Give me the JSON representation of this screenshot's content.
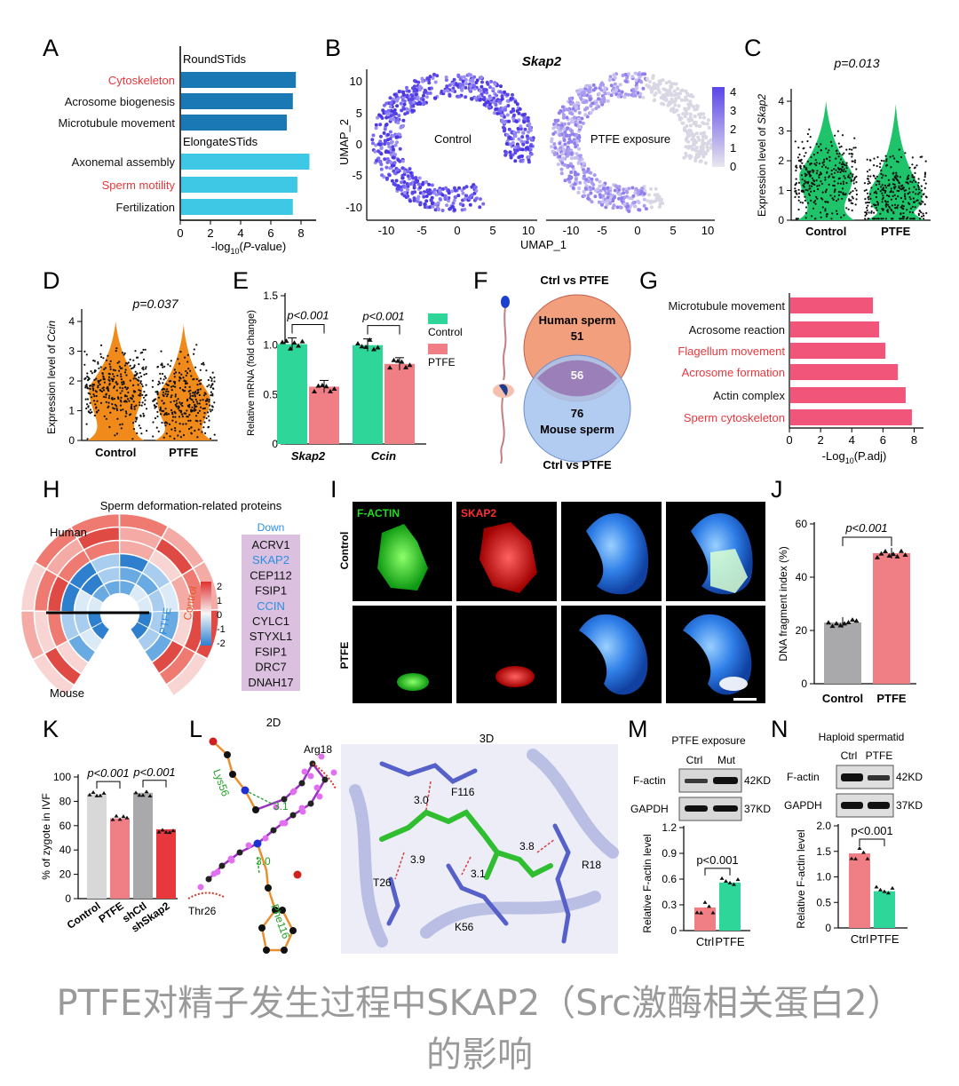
{
  "colors": {
    "red": "#e8383d",
    "darkblue": "#1a78b5",
    "cyan": "#3fc8e6",
    "green": "#2fd699",
    "pink": "#f07f85",
    "grey": "#a9a9ab",
    "purple": "#7a6cf2",
    "orange": "#f08a3a",
    "blue": "#5aa0d8",
    "label": "#1a78d8"
  },
  "panels": {
    "A": "A",
    "B": "B",
    "C": "C",
    "D": "D",
    "E": "E",
    "F": "F",
    "G": "G",
    "H": "H",
    "I": "I",
    "J": "J",
    "K": "K",
    "L": "L",
    "M": "M",
    "N": "N"
  },
  "panelA": {
    "chart_data": {
      "type": "bar",
      "groups": [
        "RoundSTids",
        "ElongateSTids"
      ],
      "categories": [
        "Cytoskeleton",
        "Acrosome biogenesis",
        "Microtubule movement",
        "Axonemal assembly",
        "Sperm motility",
        "Fertilization"
      ],
      "group_of": [
        0,
        0,
        0,
        1,
        1,
        1
      ],
      "highlight": [
        true,
        false,
        false,
        false,
        true,
        false
      ],
      "values": [
        7.6,
        7.4,
        7.0,
        8.5,
        7.7,
        7.4
      ],
      "xlim": [
        0,
        9
      ],
      "xticks": [
        0,
        2,
        4,
        6,
        8
      ],
      "xlabel_pre": "-log",
      "xlabel_sub": "10",
      "xlabel_post": "(",
      "xlabel_ital": "P",
      "xlabel_end": "-value)"
    }
  },
  "panelB": {
    "chart_data": {
      "type": "scatter",
      "title": "Skap2",
      "ylabel": "UMAP_2",
      "xlabel": "UMAP_1",
      "xticks": [
        -10,
        -5,
        0,
        5,
        10
      ],
      "yticks": [
        10,
        5,
        0,
        -5,
        -10
      ],
      "xlim": [
        -12,
        12
      ],
      "ylim": [
        -12,
        12
      ],
      "sub_labels": [
        "Control",
        "PTFE exposure"
      ],
      "legend_ticks": [
        4,
        3,
        2,
        1,
        0
      ]
    }
  },
  "panelC": {
    "chart_data": {
      "type": "violin",
      "p_label": "p=0.013",
      "ylabel_pre": "Expression level of ",
      "ylabel_gene": "Skap2",
      "categories": [
        "Control",
        "PTFE"
      ],
      "yticks": [
        0,
        1,
        2,
        3,
        4
      ],
      "ylim": [
        0,
        4.3
      ],
      "medians": [
        1.5,
        0.9
      ]
    }
  },
  "panelD": {
    "chart_data": {
      "type": "violin",
      "p_label": "p=0.037",
      "ylabel_pre": "Expression level of ",
      "ylabel_gene": "Ccin",
      "categories": [
        "Control",
        "PTFE"
      ],
      "yticks": [
        0,
        1,
        2,
        3,
        4
      ],
      "ylim": [
        0,
        4.3
      ],
      "medians": [
        1.7,
        1.4
      ]
    }
  },
  "panelE": {
    "chart_data": {
      "type": "bar",
      "ylabel": "Relative mRNA (fold change)",
      "categories": [
        "Skap2",
        "Ccin"
      ],
      "series": [
        {
          "name": "Control",
          "values": [
            1.01,
            1.0
          ]
        },
        {
          "name": "PTFE",
          "values": [
            0.58,
            0.81
          ]
        }
      ],
      "p_labels": [
        "p<0.001",
        "p<0.001"
      ],
      "yticks": [
        0,
        0.5,
        1.0,
        1.5
      ],
      "ytick_labels": [
        "0",
        "0.5",
        "1.0",
        "1.5"
      ],
      "ylim": [
        0,
        1.5
      ]
    }
  },
  "panelF": {
    "title_top": "Ctrl vs PTFE",
    "title_bottom": "Ctrl vs PTFE",
    "top_label": "Human sperm",
    "top_value": "51",
    "overlap": "56",
    "bottom_value": "76",
    "bottom_label": "Mouse sperm"
  },
  "panelG": {
    "chart_data": {
      "type": "bar",
      "categories": [
        "Microtubule movement",
        "Acrosome reaction",
        "Flagellum movement",
        "Acrosome formation",
        "Actin complex",
        "Sperm cytoskeleton"
      ],
      "highlight": [
        false,
        false,
        true,
        true,
        false,
        true
      ],
      "values": [
        5.3,
        5.7,
        6.1,
        6.9,
        7.4,
        7.8
      ],
      "xlim": [
        0,
        8.6
      ],
      "xticks": [
        0,
        2,
        4,
        6,
        8
      ],
      "xlabel_pre": "-Log",
      "xlabel_sub": "10",
      "xlabel_post": "(P.adj)"
    }
  },
  "panelH": {
    "title": "Sperm deformation-related proteins",
    "human": "Human",
    "mouse": "Mouse",
    "ptfe": "PTFE",
    "control": "Control",
    "down": "Down",
    "proteins": [
      "ACRV1",
      "SKAP2",
      "CEP112",
      "FSIP1",
      "CCIN",
      "CYLC1",
      "STYXL1",
      "FSIP1",
      "DRC7",
      "DNAH17"
    ],
    "protein_highlight": [
      false,
      true,
      false,
      false,
      true,
      false,
      false,
      false,
      false,
      false
    ],
    "scale": [
      "2",
      "1",
      "0",
      "-1",
      "-2"
    ]
  },
  "panelI": {
    "labels": [
      "F-ACTIN",
      "SKAP2"
    ],
    "rows": [
      "Control",
      "PTFE"
    ]
  },
  "panelJ": {
    "chart_data": {
      "type": "bar",
      "ylabel": "DNA fragment index (%)",
      "categories": [
        "Control",
        "PTFE"
      ],
      "values": [
        23,
        49
      ],
      "p_label": "p<0.001",
      "yticks": [
        0,
        20,
        40,
        60
      ],
      "ylim": [
        0,
        60
      ]
    }
  },
  "panelK": {
    "chart_data": {
      "type": "bar",
      "ylabel": "% of zygote in IVF",
      "categories": [
        "Control",
        "PTFE",
        "shCtl",
        "shSkap2"
      ],
      "values": [
        86,
        66,
        87,
        57
      ],
      "p_labels": [
        "p<0.001",
        "p<0.001"
      ],
      "yticks": [
        0,
        20,
        40,
        60,
        80,
        100
      ],
      "ylim": [
        0,
        100
      ]
    }
  },
  "panelL": {
    "title_2d": "2D",
    "title_3d": "3D",
    "lys": "Lys56",
    "arg": "Arg18",
    "thr": "Thr26",
    "phe": "Phe116",
    "d2_a": "3.1",
    "d2_b": "3.0",
    "d3_a": "3.0",
    "d3_b": "3.9",
    "d3_c": "3.1",
    "d3_d": "3.8",
    "f116": "F116",
    "t26": "T26",
    "k56": "K56",
    "r18": "R18"
  },
  "panelM": {
    "title": "PTFE exposure",
    "lane1": "Ctrl",
    "lane2": "Mut",
    "band1": "F-actin",
    "band2": "GAPDH",
    "kd1": "42KD",
    "kd2": "37KD",
    "chart_data": {
      "type": "bar",
      "ylabel": "Relative F-actin level",
      "categories": [
        "Ctrl",
        "PTFE"
      ],
      "values": [
        0.27,
        0.56
      ],
      "p_label": "p<0.001",
      "yticks": [
        0,
        0.3,
        0.6,
        0.9,
        1.2
      ],
      "ytick_labels": [
        "0",
        "0.3",
        "0.6",
        "0.9",
        "1.2"
      ],
      "ylim": [
        0,
        1.2
      ]
    }
  },
  "panelN": {
    "title": "Haploid spermatid",
    "lane1": "Ctrl",
    "lane2": "PTFE",
    "band1": "F-actin",
    "band2": "GAPDH",
    "kd1": "42KD",
    "kd2": "37KD",
    "chart_data": {
      "type": "bar",
      "ylabel": "Relative F-actin level",
      "categories": [
        "Ctrl",
        "PTFE"
      ],
      "values": [
        1.46,
        0.72
      ],
      "p_label": "p<0.001",
      "yticks": [
        0,
        0.5,
        1.0,
        1.5,
        2.0
      ],
      "ytick_labels": [
        "0",
        "0.5",
        "1.0",
        "1.5",
        "2.0"
      ],
      "ylim": [
        0,
        2.0
      ]
    }
  },
  "caption": {
    "line1": "PTFE对精子发生过程中SKAP2（Src激酶相关蛋白2）",
    "line2": "的影响"
  }
}
